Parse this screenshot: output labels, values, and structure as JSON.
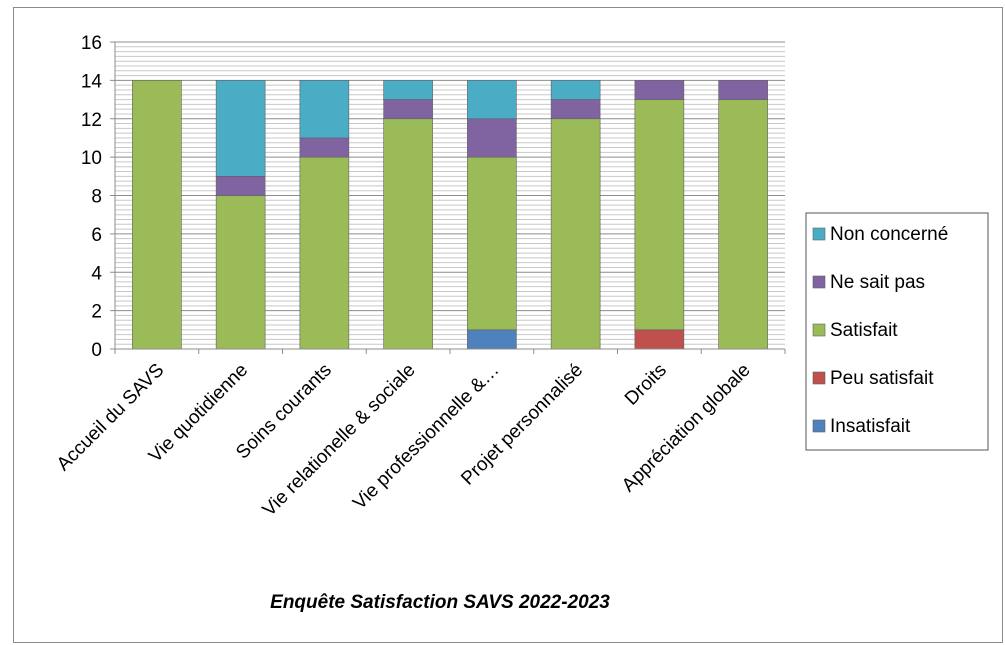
{
  "chart_data": {
    "type": "bar",
    "stacked": true,
    "title": "Enquête Satisfaction SAVS 2022-2023",
    "xlabel": "",
    "ylabel": "",
    "ylim": [
      0,
      16
    ],
    "yticks": [
      0,
      2,
      4,
      6,
      8,
      10,
      12,
      14,
      16
    ],
    "grid": true,
    "legend_position": "right",
    "categories": [
      "Accueil du SAVS",
      "Vie quotidienne",
      "Soins courants",
      "Vie relationelle & sociale",
      "Vie professionnelle &…",
      "Projet personnalisé",
      "Droits",
      "Appréciation globale"
    ],
    "series": [
      {
        "name": "Insatisfait",
        "color": "#4f81bd",
        "values": [
          0,
          0,
          0,
          0,
          1,
          0,
          0,
          0
        ]
      },
      {
        "name": "Peu satisfait",
        "color": "#c0504d",
        "values": [
          0,
          0,
          0,
          0,
          0,
          0,
          1,
          0
        ]
      },
      {
        "name": "Satisfait",
        "color": "#9bbb59",
        "values": [
          14,
          8,
          10,
          12,
          9,
          12,
          12,
          13
        ]
      },
      {
        "name": "Ne sait pas",
        "color": "#8064a2",
        "values": [
          0,
          1,
          1,
          1,
          2,
          1,
          1,
          1
        ]
      },
      {
        "name": "Non concerné",
        "color": "#4bacc6",
        "values": [
          0,
          5,
          3,
          1,
          2,
          1,
          0,
          0
        ]
      }
    ]
  }
}
